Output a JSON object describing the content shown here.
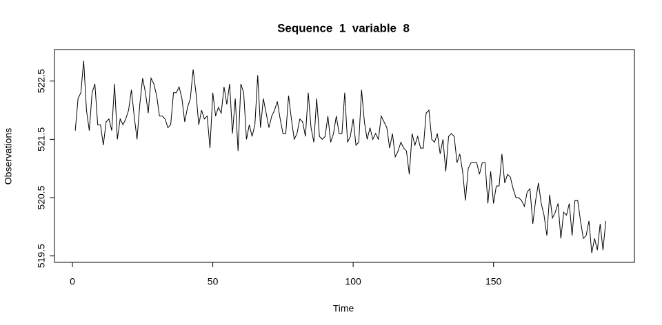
{
  "chart_data": {
    "type": "line",
    "title": "Sequence  1  variable  8",
    "x_label": "Time",
    "y_label": "Observations",
    "x": [
      1,
      2,
      3,
      4,
      5,
      6,
      7,
      8,
      9,
      10,
      11,
      12,
      13,
      14,
      15,
      16,
      17,
      18,
      19,
      20,
      21,
      22,
      23,
      24,
      25,
      26,
      27,
      28,
      29,
      30,
      31,
      32,
      33,
      34,
      35,
      36,
      37,
      38,
      39,
      40,
      41,
      42,
      43,
      44,
      45,
      46,
      47,
      48,
      49,
      50,
      51,
      52,
      53,
      54,
      55,
      56,
      57,
      58,
      59,
      60,
      61,
      62,
      63,
      64,
      65,
      66,
      67,
      68,
      69,
      70,
      71,
      72,
      73,
      74,
      75,
      76,
      77,
      78,
      79,
      80,
      81,
      82,
      83,
      84,
      85,
      86,
      87,
      88,
      89,
      90,
      91,
      92,
      93,
      94,
      95,
      96,
      97,
      98,
      99,
      100,
      101,
      102,
      103,
      104,
      105,
      106,
      107,
      108,
      109,
      110,
      111,
      112,
      113,
      114,
      115,
      116,
      117,
      118,
      119,
      120,
      121,
      122,
      123,
      124,
      125,
      126,
      127,
      128,
      129,
      130,
      131,
      132,
      133,
      134,
      135,
      136,
      137,
      138,
      139,
      140,
      141,
      142,
      143,
      144,
      145,
      146,
      147,
      148,
      149,
      150,
      151,
      152,
      153,
      154,
      155,
      156,
      157,
      158,
      159,
      160,
      161,
      162,
      163,
      164,
      165,
      166,
      167,
      168,
      169,
      170,
      171,
      172,
      173,
      174,
      175,
      176,
      177,
      178,
      179,
      180,
      181,
      182,
      183,
      184,
      185,
      186,
      187,
      188,
      189,
      190
    ],
    "series": [
      {
        "color": "#000000",
        "values": [
          521.65,
          522.2,
          522.3,
          522.85,
          522.0,
          521.65,
          522.3,
          522.45,
          521.75,
          521.75,
          521.4,
          521.8,
          521.85,
          521.65,
          522.45,
          521.5,
          521.85,
          521.75,
          521.85,
          522.0,
          522.35,
          521.9,
          521.5,
          522.1,
          522.55,
          522.3,
          521.95,
          522.55,
          522.45,
          522.25,
          521.9,
          521.9,
          521.85,
          521.7,
          521.75,
          522.3,
          522.3,
          522.4,
          522.2,
          521.8,
          522.05,
          522.2,
          522.7,
          522.3,
          521.75,
          522.0,
          521.85,
          521.9,
          521.35,
          522.3,
          521.9,
          522.05,
          521.95,
          522.4,
          522.1,
          522.45,
          521.6,
          522.2,
          521.3,
          522.45,
          522.3,
          521.5,
          521.75,
          521.55,
          521.75,
          522.6,
          521.7,
          522.2,
          521.95,
          521.7,
          521.9,
          522.0,
          522.15,
          521.85,
          521.6,
          521.6,
          522.25,
          521.85,
          521.5,
          521.6,
          521.85,
          521.8,
          521.55,
          522.3,
          521.7,
          521.45,
          522.2,
          521.55,
          521.5,
          521.55,
          521.9,
          521.45,
          521.6,
          521.9,
          521.6,
          521.6,
          522.3,
          521.45,
          521.55,
          521.85,
          521.4,
          521.45,
          522.35,
          521.8,
          521.5,
          521.7,
          521.5,
          521.6,
          521.5,
          521.9,
          521.8,
          521.7,
          521.35,
          521.6,
          521.2,
          521.3,
          521.45,
          521.35,
          521.3,
          520.9,
          521.6,
          521.4,
          521.55,
          521.35,
          521.35,
          521.95,
          522.0,
          521.5,
          521.45,
          521.6,
          521.25,
          521.5,
          520.95,
          521.55,
          521.6,
          521.55,
          521.1,
          521.25,
          520.95,
          520.45,
          521.0,
          521.1,
          521.1,
          521.1,
          520.9,
          521.1,
          521.1,
          520.4,
          520.95,
          520.4,
          520.7,
          520.7,
          521.25,
          520.75,
          520.9,
          520.85,
          520.65,
          520.5,
          520.5,
          520.45,
          520.35,
          520.6,
          520.65,
          520.05,
          520.45,
          520.75,
          520.4,
          520.2,
          519.85,
          520.55,
          520.15,
          520.25,
          520.4,
          519.8,
          520.25,
          520.2,
          520.4,
          519.85,
          520.45,
          520.45,
          520.1,
          519.8,
          519.85,
          520.1,
          519.55,
          519.8,
          519.6,
          520.05,
          519.6,
          520.1
        ]
      }
    ],
    "xlim": [
      -6.4,
      200.2
    ],
    "xticks": [
      0,
      50,
      100,
      150
    ],
    "ylim": [
      519.39,
      523.04
    ],
    "yticks": [
      519.5,
      520.5,
      521.5,
      522.5
    ]
  }
}
